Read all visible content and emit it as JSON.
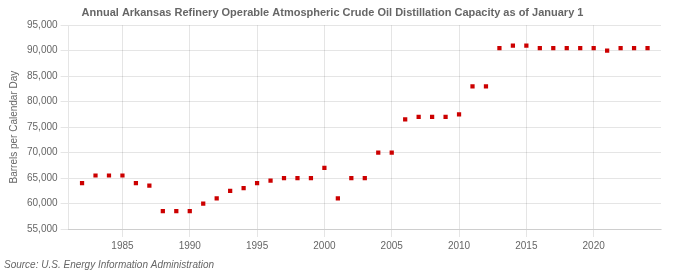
{
  "chart_data": {
    "type": "scatter",
    "title": "Annual Arkansas Refinery Operable Atmospheric Crude Oil Distillation Capacity as of January 1",
    "ylabel": "Barrels per Calendar Day",
    "source": "Source: U.S. Energy Information Administration",
    "x": [
      1982,
      1983,
      1984,
      1985,
      1986,
      1987,
      1988,
      1989,
      1990,
      1991,
      1992,
      1993,
      1994,
      1995,
      1996,
      1997,
      1998,
      1999,
      2000,
      2001,
      2002,
      2003,
      2004,
      2005,
      2006,
      2007,
      2008,
      2009,
      2010,
      2011,
      2012,
      2013,
      2014,
      2015,
      2016,
      2017,
      2018,
      2019,
      2020,
      2021,
      2022,
      2023,
      2024
    ],
    "values": [
      64000,
      65500,
      65500,
      65500,
      64000,
      63500,
      58500,
      58500,
      58500,
      60000,
      61000,
      62500,
      63000,
      64000,
      64500,
      65000,
      65000,
      65000,
      67000,
      61000,
      65000,
      65000,
      70000,
      70000,
      76500,
      77000,
      77000,
      77000,
      77500,
      83000,
      83000,
      90500,
      91000,
      91000,
      90500,
      90500,
      90500,
      90500,
      90500,
      90000,
      90500,
      90500,
      90500
    ],
    "color": "#cc0000",
    "marker": "square",
    "xlim": [
      1981,
      2025
    ],
    "xticks": [
      1985,
      1990,
      1995,
      2000,
      2005,
      2010,
      2015,
      2020
    ],
    "ylim": [
      55000,
      95000
    ],
    "yticks": [
      {
        "value": 55000,
        "label": "55,000"
      },
      {
        "value": 60000,
        "label": "60,000"
      },
      {
        "value": 65000,
        "label": "65,000"
      },
      {
        "value": 70000,
        "label": "70,000"
      },
      {
        "value": 75000,
        "label": "75,000"
      },
      {
        "value": 80000,
        "label": "80,000"
      },
      {
        "value": 85000,
        "label": "85,000"
      },
      {
        "value": 90000,
        "label": "90,000"
      },
      {
        "value": 95000,
        "label": "95,000"
      }
    ],
    "grid": true
  }
}
